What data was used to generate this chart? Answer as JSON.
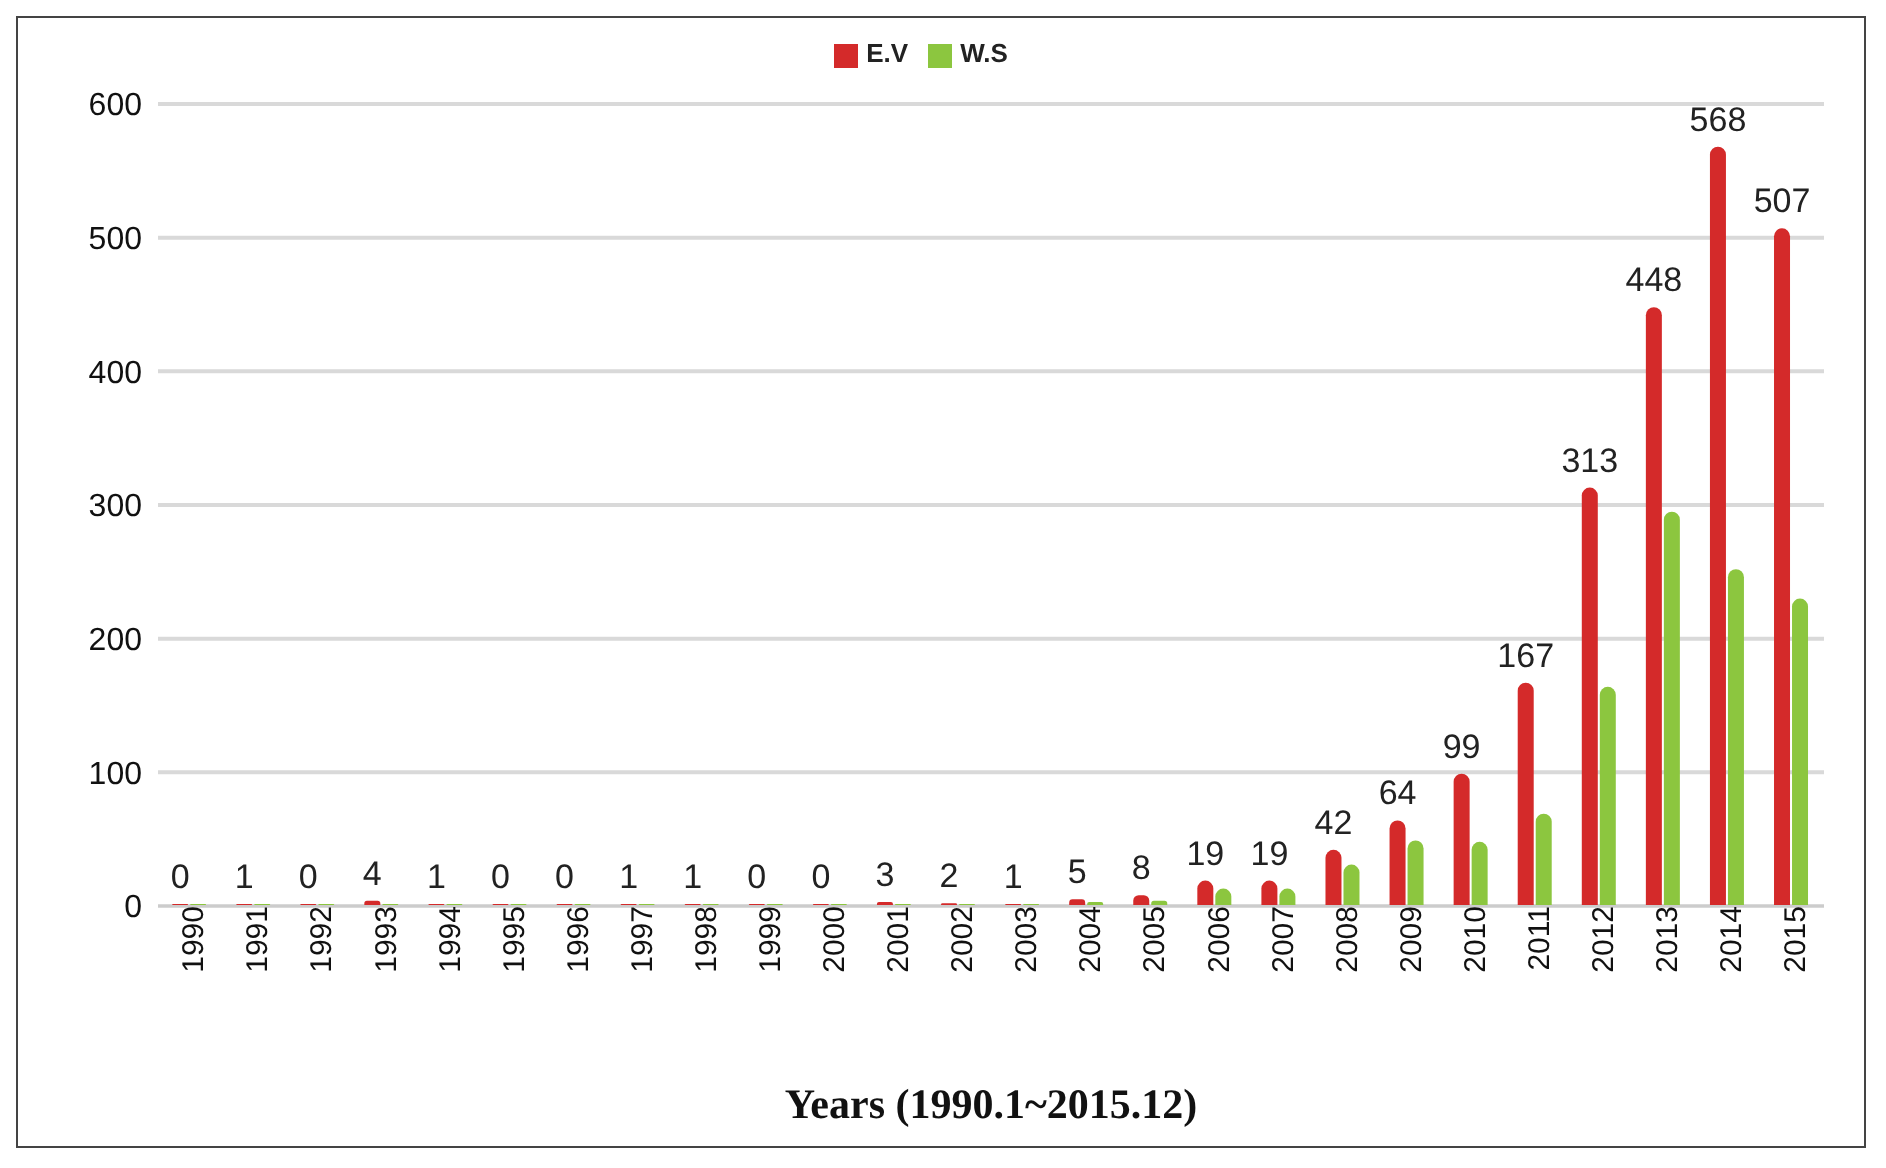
{
  "chart_data": {
    "type": "bar",
    "xlabel": "Years (1990.1~2015.12)",
    "categories": [
      "1990",
      "1991",
      "1992",
      "1993",
      "1994",
      "1995",
      "1996",
      "1997",
      "1998",
      "1999",
      "2000",
      "2001",
      "2002",
      "2003",
      "2004",
      "2005",
      "2006",
      "2007",
      "2008",
      "2009",
      "2010",
      "2011",
      "2012",
      "2013",
      "2014",
      "2015"
    ],
    "series": [
      {
        "name": "E.V",
        "color": "#d42a2a",
        "values": [
          0,
          1,
          0,
          4,
          1,
          0,
          0,
          1,
          1,
          0,
          0,
          3,
          2,
          1,
          5,
          8,
          19,
          19,
          42,
          64,
          99,
          167,
          313,
          448,
          568,
          507
        ],
        "value_labels": [
          "0",
          "1",
          "0",
          "4",
          "1",
          "0",
          "0",
          "1",
          "1",
          "0",
          "0",
          "3",
          "2",
          "1",
          "5",
          "8",
          "19",
          "19",
          "42",
          "64",
          "99",
          "167",
          "313",
          "448",
          "568",
          "507"
        ]
      },
      {
        "name": "W.S",
        "color": "#8cc63f",
        "values": [
          0,
          0,
          0,
          0,
          0,
          0,
          0,
          0,
          0,
          0,
          0,
          0,
          0,
          0,
          3,
          4,
          13,
          13,
          31,
          49,
          48,
          69,
          164,
          295,
          252,
          230
        ]
      }
    ],
    "ylim": [
      0,
      600
    ],
    "yticks": [
      0,
      100,
      200,
      300,
      400,
      500,
      600
    ],
    "grid": "y",
    "legend": "top"
  }
}
